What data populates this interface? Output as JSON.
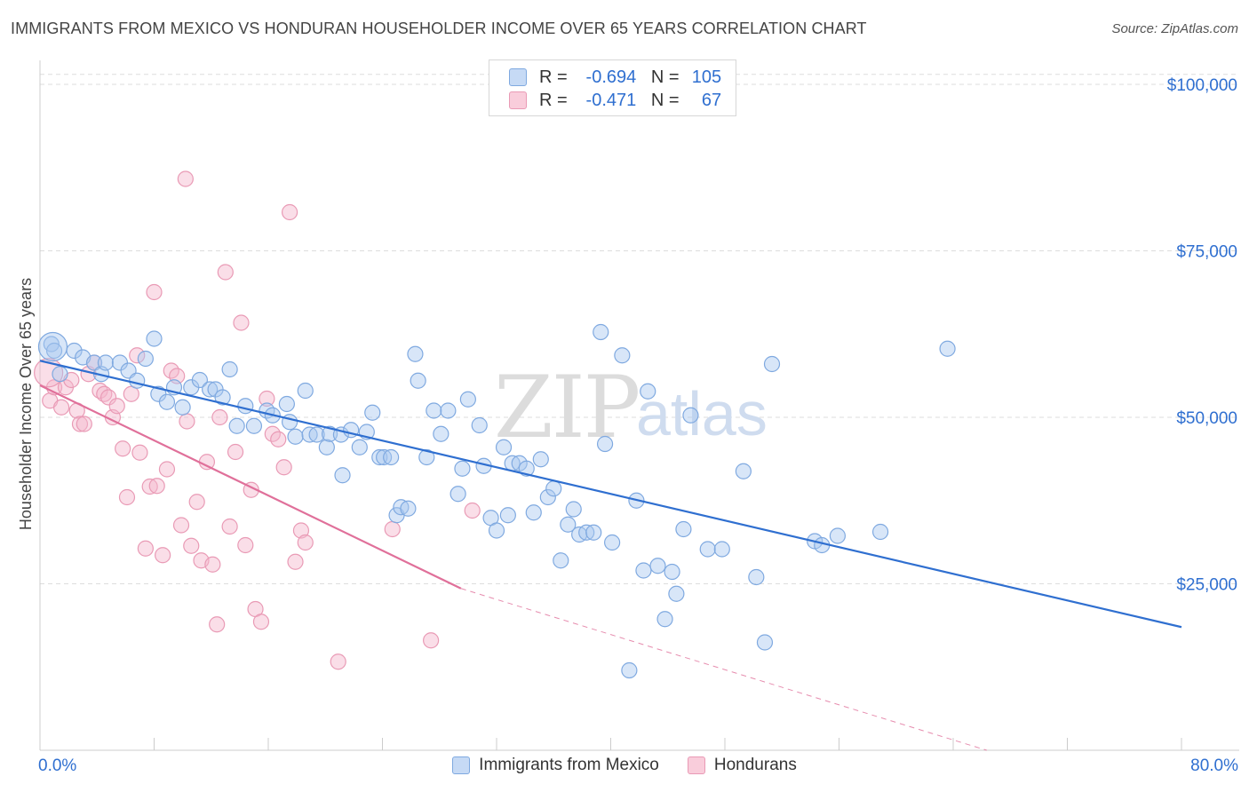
{
  "title": "IMMIGRANTS FROM MEXICO VS HONDURAN HOUSEHOLDER INCOME OVER 65 YEARS CORRELATION CHART",
  "source": "Source: ZipAtlas.com",
  "watermark": {
    "zip": "ZIP",
    "atlas": "atlas"
  },
  "colors": {
    "blue": "#2f6fd0",
    "blue_fill": "#a9c8f0",
    "pink": "#e0709a",
    "pink_fill": "#f4b6cb",
    "grid": "#dddddd"
  },
  "legend": {
    "rows": [
      {
        "r_label": "R =",
        "r_value": "-0.694",
        "n_label": "N =",
        "n_value": "105"
      },
      {
        "r_label": "R =",
        "r_value": "-0.471",
        "n_label": "N =",
        "n_value": "67"
      }
    ]
  },
  "bottom_legend": [
    "Immigrants from Mexico",
    "Hondurans"
  ],
  "x_axis": {
    "min_label": "0.0%",
    "max_label": "80.0%"
  },
  "chart_data": {
    "type": "scatter",
    "title": "IMMIGRANTS FROM MEXICO VS HONDURAN HOUSEHOLDER INCOME OVER 65 YEARS CORRELATION CHART",
    "xlabel": "",
    "ylabel": "Householder Income Over 65 years",
    "xlim": [
      0,
      80
    ],
    "ylim": [
      0,
      100000
    ],
    "y_ticks": [
      {
        "value": 25000,
        "label": "$25,000"
      },
      {
        "value": 50000,
        "label": "$50,000"
      },
      {
        "value": 75000,
        "label": "$75,000"
      },
      {
        "value": 100000,
        "label": "$100,000"
      }
    ],
    "grid": true,
    "legend_position": "top-center",
    "series": [
      {
        "name": "Immigrants from Mexico",
        "color": "#2f6fd0",
        "trend": {
          "x": [
            0,
            80
          ],
          "y": [
            58500,
            18500
          ]
        },
        "points": [
          [
            0.8,
            61000
          ],
          [
            1.0,
            60000
          ],
          [
            1.4,
            56500
          ],
          [
            2.4,
            60000
          ],
          [
            3.0,
            59000
          ],
          [
            3.8,
            58200
          ],
          [
            4.3,
            56500
          ],
          [
            4.6,
            58200
          ],
          [
            5.6,
            58200
          ],
          [
            6.2,
            57000
          ],
          [
            6.8,
            55500
          ],
          [
            7.4,
            58800
          ],
          [
            8.0,
            61800
          ],
          [
            8.3,
            53500
          ],
          [
            8.9,
            52300
          ],
          [
            9.4,
            54500
          ],
          [
            10.0,
            51500
          ],
          [
            10.6,
            54500
          ],
          [
            11.2,
            55600
          ],
          [
            11.9,
            54200
          ],
          [
            12.3,
            54200
          ],
          [
            12.8,
            53000
          ],
          [
            13.3,
            57200
          ],
          [
            13.8,
            48700
          ],
          [
            14.4,
            51700
          ],
          [
            15.0,
            48700
          ],
          [
            15.9,
            51000
          ],
          [
            16.3,
            50300
          ],
          [
            17.3,
            52000
          ],
          [
            17.5,
            49300
          ],
          [
            17.9,
            47100
          ],
          [
            18.6,
            54000
          ],
          [
            18.9,
            47400
          ],
          [
            19.4,
            47400
          ],
          [
            20.1,
            45500
          ],
          [
            20.3,
            47500
          ],
          [
            21.1,
            47400
          ],
          [
            21.2,
            41300
          ],
          [
            21.8,
            48100
          ],
          [
            22.4,
            45500
          ],
          [
            22.9,
            47800
          ],
          [
            23.3,
            50700
          ],
          [
            23.8,
            44000
          ],
          [
            24.1,
            44000
          ],
          [
            24.6,
            44000
          ],
          [
            25.0,
            35300
          ],
          [
            25.3,
            36500
          ],
          [
            25.8,
            36300
          ],
          [
            26.3,
            59500
          ],
          [
            26.5,
            55500
          ],
          [
            27.1,
            44000
          ],
          [
            27.6,
            51000
          ],
          [
            28.1,
            47500
          ],
          [
            28.6,
            51000
          ],
          [
            29.3,
            38500
          ],
          [
            29.6,
            42300
          ],
          [
            30.0,
            52700
          ],
          [
            30.8,
            48800
          ],
          [
            31.1,
            42700
          ],
          [
            31.6,
            34900
          ],
          [
            32.0,
            33000
          ],
          [
            32.5,
            45500
          ],
          [
            32.8,
            35300
          ],
          [
            33.1,
            43100
          ],
          [
            33.6,
            43100
          ],
          [
            34.1,
            42300
          ],
          [
            34.6,
            35700
          ],
          [
            35.1,
            43700
          ],
          [
            35.6,
            38000
          ],
          [
            36.0,
            39300
          ],
          [
            36.5,
            28500
          ],
          [
            37.0,
            33900
          ],
          [
            37.4,
            36200
          ],
          [
            37.8,
            32400
          ],
          [
            38.3,
            32700
          ],
          [
            38.8,
            32700
          ],
          [
            39.3,
            62800
          ],
          [
            39.6,
            46000
          ],
          [
            40.1,
            31200
          ],
          [
            40.8,
            59300
          ],
          [
            41.3,
            12000
          ],
          [
            41.8,
            37500
          ],
          [
            42.3,
            27000
          ],
          [
            42.6,
            53900
          ],
          [
            43.3,
            27700
          ],
          [
            43.8,
            19700
          ],
          [
            44.3,
            26800
          ],
          [
            44.6,
            23500
          ],
          [
            45.1,
            33200
          ],
          [
            45.6,
            50300
          ],
          [
            46.8,
            30200
          ],
          [
            47.8,
            30200
          ],
          [
            49.3,
            41900
          ],
          [
            50.2,
            26000
          ],
          [
            50.8,
            16200
          ],
          [
            51.3,
            58000
          ],
          [
            54.3,
            31400
          ],
          [
            54.8,
            30800
          ],
          [
            55.9,
            32200
          ],
          [
            58.9,
            32800
          ],
          [
            63.6,
            60300
          ]
        ],
        "large_points": [
          [
            0.9,
            60600
          ]
        ]
      },
      {
        "name": "Hondurans",
        "color": "#e0709a",
        "trend": {
          "x": [
            0,
            29.5
          ],
          "y": [
            54800,
            24300
          ],
          "dashed_to": {
            "x": 80,
            "y": -9000
          }
        },
        "points": [
          [
            0.7,
            52500
          ],
          [
            1.0,
            54500
          ],
          [
            1.5,
            51500
          ],
          [
            1.8,
            54500
          ],
          [
            2.2,
            55600
          ],
          [
            2.6,
            51000
          ],
          [
            2.8,
            49000
          ],
          [
            3.1,
            49000
          ],
          [
            3.4,
            56500
          ],
          [
            3.8,
            58200
          ],
          [
            4.2,
            54000
          ],
          [
            4.5,
            53500
          ],
          [
            4.8,
            53000
          ],
          [
            5.1,
            50000
          ],
          [
            5.4,
            51700
          ],
          [
            5.8,
            45300
          ],
          [
            6.1,
            38000
          ],
          [
            6.4,
            53500
          ],
          [
            6.8,
            59300
          ],
          [
            7.0,
            44700
          ],
          [
            7.4,
            30300
          ],
          [
            7.7,
            39600
          ],
          [
            8.0,
            68800
          ],
          [
            8.2,
            39700
          ],
          [
            8.6,
            29300
          ],
          [
            8.9,
            42200
          ],
          [
            9.2,
            57000
          ],
          [
            9.6,
            56200
          ],
          [
            9.9,
            33800
          ],
          [
            10.3,
            49400
          ],
          [
            10.6,
            30700
          ],
          [
            11.0,
            37300
          ],
          [
            11.3,
            28500
          ],
          [
            11.7,
            43300
          ],
          [
            12.1,
            27900
          ],
          [
            12.6,
            50000
          ],
          [
            13.0,
            71800
          ],
          [
            13.3,
            33600
          ],
          [
            13.7,
            44800
          ],
          [
            14.1,
            64200
          ],
          [
            14.4,
            30800
          ],
          [
            14.8,
            39100
          ],
          [
            15.1,
            21200
          ],
          [
            15.5,
            19300
          ],
          [
            15.9,
            52800
          ],
          [
            16.3,
            47500
          ],
          [
            16.7,
            46700
          ],
          [
            17.1,
            42500
          ],
          [
            17.5,
            80800
          ],
          [
            17.9,
            28300
          ],
          [
            18.3,
            33000
          ],
          [
            18.6,
            31200
          ],
          [
            10.2,
            85800
          ],
          [
            12.4,
            18900
          ],
          [
            20.9,
            13300
          ],
          [
            24.7,
            33200
          ],
          [
            27.4,
            16500
          ],
          [
            30.3,
            36000
          ]
        ],
        "large_points": [
          [
            0.6,
            56700
          ]
        ]
      }
    ]
  }
}
